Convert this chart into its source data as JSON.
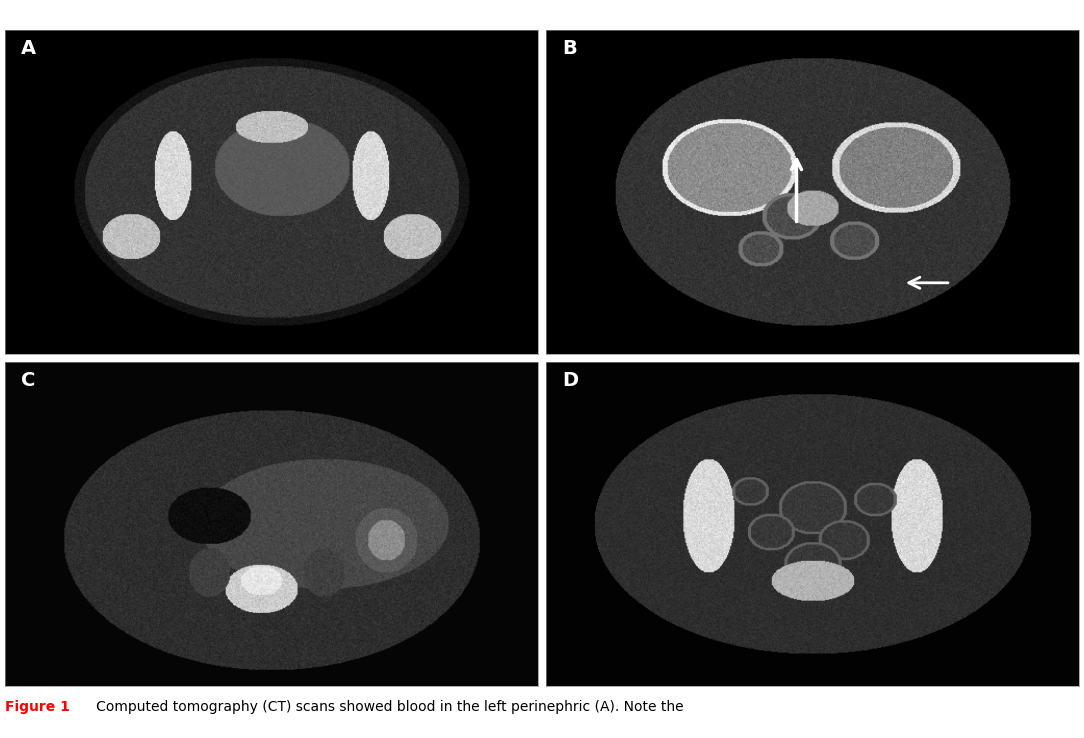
{
  "figure_width": 10.84,
  "figure_height": 7.38,
  "dpi": 100,
  "background_color": "#ffffff",
  "panel_labels": [
    "A",
    "B",
    "C",
    "D"
  ],
  "label_color": "#ffffff",
  "label_fontsize": 14,
  "label_fontweight": "bold",
  "caption_prefix": "Figure 1",
  "caption_rest": "   Computed tomography (CT) scans showed blood in the left perinephric (A). Note the",
  "caption_color_figure": "#ff0000",
  "caption_color_text": "#000000",
  "caption_fontsize": 10
}
